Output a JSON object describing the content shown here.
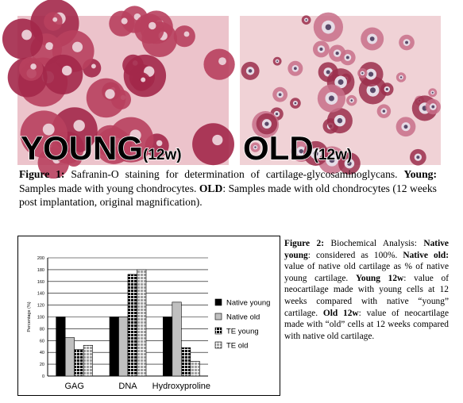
{
  "figure1": {
    "young_label": "YOUNG",
    "young_sub": "(12w)",
    "old_label": "OLD",
    "old_sub": "(12w)",
    "caption": [
      {
        "text": "Figure 1:",
        "bold": true
      },
      {
        "text": " Safranin-O staining for determination of cartilage-glycosaminoglycans. ",
        "bold": false
      },
      {
        "text": "Young:",
        "bold": true
      },
      {
        "text": " Samples made with young chondrocytes. ",
        "bold": false
      },
      {
        "text": "OLD",
        "bold": true
      },
      {
        "text": ": Samples made with old chondrocytes (12 weeks post implantation, original magnification).",
        "bold": false
      }
    ]
  },
  "chart_data": {
    "type": "bar",
    "ylabel": "Percentage (%)",
    "categories": [
      "GAG",
      "DNA",
      "Hydroxyproline"
    ],
    "series": [
      {
        "name": "Native young",
        "color": "#000000",
        "pattern": "solid",
        "values": [
          100,
          100,
          100
        ]
      },
      {
        "name": "Native old",
        "color": "#c0c0c0",
        "pattern": "solid",
        "values": [
          65,
          100,
          125
        ]
      },
      {
        "name": "TE young",
        "color": "#000000",
        "pattern": "grid",
        "values": [
          45,
          172,
          48
        ]
      },
      {
        "name": "TE old",
        "color": "#a0a0a0",
        "pattern": "grid",
        "values": [
          52,
          180,
          25
        ]
      }
    ],
    "ylim": [
      0,
      200
    ],
    "yticks": [
      0,
      20,
      40,
      60,
      80,
      100,
      120,
      140,
      160,
      180,
      200
    ],
    "grid": true,
    "legend": "right"
  },
  "figure2": {
    "caption": [
      {
        "text": "Figure 2:",
        "bold": true
      },
      {
        "text": " Biochemical Analysis: ",
        "bold": false
      },
      {
        "text": "Native young",
        "bold": true
      },
      {
        "text": ": considered as 100%. ",
        "bold": false
      },
      {
        "text": "Native old:",
        "bold": true
      },
      {
        "text": " value of native old cartilage as % of native young cartilage. ",
        "bold": false
      },
      {
        "text": "Young 12w",
        "bold": true
      },
      {
        "text": ": value of neocartilage made with young cells at 12 weeks compared with native “young” cartilage. ",
        "bold": false
      },
      {
        "text": "Old 12w",
        "bold": true
      },
      {
        "text": ": value of neocartilage made with “old” cells at 12 weeks compared with native old cartilage.",
        "bold": false
      }
    ]
  }
}
